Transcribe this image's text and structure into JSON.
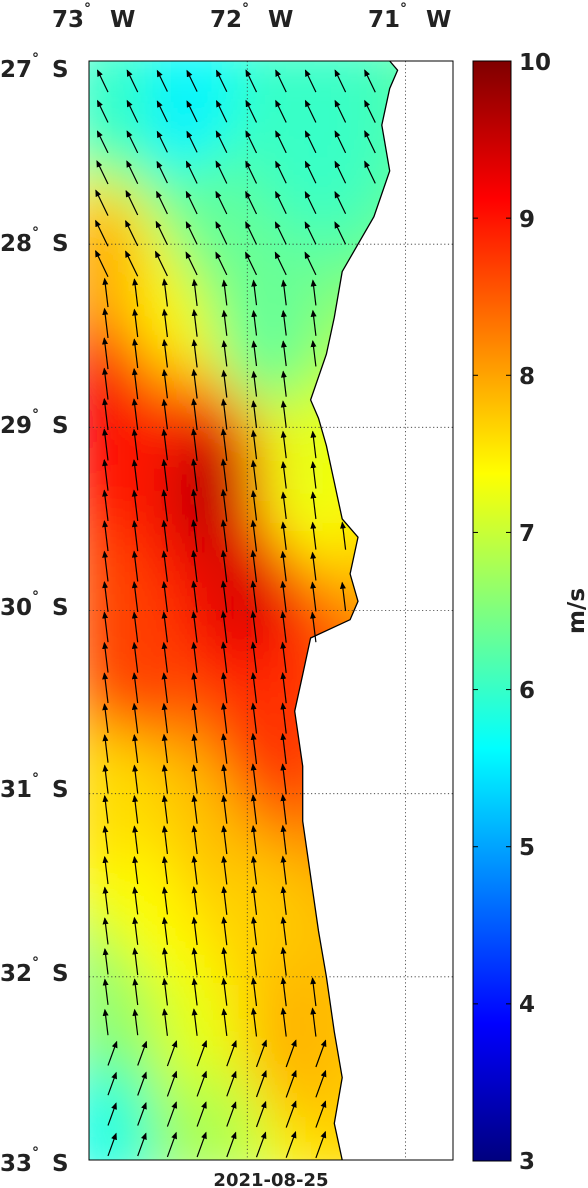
{
  "map": {
    "lon_labels": [
      {
        "deg": "73",
        "hemi": "W",
        "lon": -73
      },
      {
        "deg": "72",
        "hemi": "W",
        "lon": -72
      },
      {
        "deg": "71",
        "hemi": "W",
        "lon": -71
      }
    ],
    "lat_labels": [
      {
        "deg": "27",
        "hemi": "S",
        "lat": -27
      },
      {
        "deg": "28",
        "hemi": "S",
        "lat": -28
      },
      {
        "deg": "29",
        "hemi": "S",
        "lat": -29
      },
      {
        "deg": "30",
        "hemi": "S",
        "lat": -30
      },
      {
        "deg": "31",
        "hemi": "S",
        "lat": -31
      },
      {
        "deg": "32",
        "hemi": "S",
        "lat": -32
      },
      {
        "deg": "33",
        "hemi": "S",
        "lat": -33
      }
    ],
    "degree_symbol": "°",
    "date": "2021-08-25",
    "lon_range": [
      -73.0,
      -70.7
    ],
    "lat_range": [
      -33.0,
      -27.0
    ],
    "variable": "wind speed",
    "arrow_direction": "toward north-northwest"
  },
  "colorbar": {
    "label": "m/s",
    "min": 3,
    "max": 10,
    "ticks": [
      "3",
      "4",
      "5",
      "6",
      "7",
      "8",
      "9",
      "10"
    ],
    "colormap": "jet",
    "jet_stops": [
      "#00007f",
      "#0000ff",
      "#007fff",
      "#00ffff",
      "#7fff7f",
      "#ffff00",
      "#ff7f00",
      "#ff0000",
      "#7f0000"
    ]
  },
  "chart_data": {
    "type": "heatmap",
    "title": "",
    "date": "2021-08-25",
    "units": "m/s",
    "xlabel": "",
    "ylabel": "",
    "xlim": [
      -73.0,
      -70.7
    ],
    "ylim": [
      -33.0,
      -27.0
    ],
    "clim": [
      3,
      10
    ],
    "coastline": [
      [
        -71.1,
        -27.0
      ],
      [
        -71.05,
        -27.05
      ],
      [
        -71.1,
        -27.15
      ],
      [
        -71.15,
        -27.35
      ],
      [
        -71.1,
        -27.6
      ],
      [
        -71.2,
        -27.85
      ],
      [
        -71.3,
        -28.0
      ],
      [
        -71.4,
        -28.15
      ],
      [
        -71.45,
        -28.4
      ],
      [
        -71.5,
        -28.6
      ],
      [
        -71.6,
        -28.85
      ],
      [
        -71.55,
        -28.95
      ],
      [
        -71.5,
        -29.1
      ],
      [
        -71.45,
        -29.3
      ],
      [
        -71.4,
        -29.5
      ],
      [
        -71.3,
        -29.6
      ],
      [
        -71.35,
        -29.8
      ],
      [
        -71.3,
        -29.95
      ],
      [
        -71.35,
        -30.05
      ],
      [
        -71.6,
        -30.15
      ],
      [
        -71.65,
        -30.35
      ],
      [
        -71.7,
        -30.55
      ],
      [
        -71.65,
        -30.85
      ],
      [
        -71.65,
        -31.15
      ],
      [
        -71.6,
        -31.45
      ],
      [
        -71.55,
        -31.75
      ],
      [
        -71.5,
        -32.0
      ],
      [
        -71.45,
        -32.3
      ],
      [
        -71.4,
        -32.55
      ],
      [
        -71.45,
        -32.8
      ],
      [
        -71.4,
        -33.0
      ]
    ],
    "wind_speed_samples": [
      {
        "lon": -72.9,
        "lat": -27.2,
        "speed": 6.0
      },
      {
        "lon": -72.4,
        "lat": -27.35,
        "speed": 5.5
      },
      {
        "lon": -71.6,
        "lat": -27.4,
        "speed": 6.0
      },
      {
        "lon": -72.3,
        "lat": -27.8,
        "speed": 6.3
      },
      {
        "lon": -72.9,
        "lat": -28.1,
        "speed": 8.0
      },
      {
        "lon": -72.6,
        "lat": -28.3,
        "speed": 7.5
      },
      {
        "lon": -71.9,
        "lat": -28.5,
        "speed": 6.3
      },
      {
        "lon": -72.9,
        "lat": -28.8,
        "speed": 9.2
      },
      {
        "lon": -72.2,
        "lat": -29.3,
        "speed": 9.6
      },
      {
        "lon": -71.7,
        "lat": -29.3,
        "speed": 7.2
      },
      {
        "lon": -72.0,
        "lat": -29.9,
        "speed": 9.4
      },
      {
        "lon": -72.7,
        "lat": -30.3,
        "speed": 8.7
      },
      {
        "lon": -71.9,
        "lat": -30.6,
        "speed": 8.8
      },
      {
        "lon": -72.8,
        "lat": -31.0,
        "speed": 7.6
      },
      {
        "lon": -72.3,
        "lat": -31.2,
        "speed": 7.8
      },
      {
        "lon": -72.6,
        "lat": -31.6,
        "speed": 7.4
      },
      {
        "lon": -72.0,
        "lat": -31.8,
        "speed": 7.7
      },
      {
        "lon": -72.9,
        "lat": -32.2,
        "speed": 6.6
      },
      {
        "lon": -72.3,
        "lat": -32.3,
        "speed": 7.2
      },
      {
        "lon": -71.8,
        "lat": -32.3,
        "speed": 7.9
      },
      {
        "lon": -72.9,
        "lat": -32.8,
        "speed": 5.8
      },
      {
        "lon": -72.2,
        "lat": -32.8,
        "speed": 6.8
      }
    ]
  }
}
